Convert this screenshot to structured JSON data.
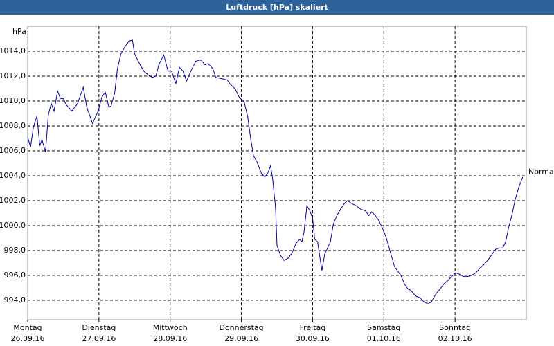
{
  "chart_data": {
    "type": "line",
    "title": "Luftdruck [hPa] skaliert",
    "y_label": "hPa",
    "annotation": {
      "text": "Normal",
      "y": 1004.3
    },
    "xlim": [
      0,
      7
    ],
    "ylim": [
      992.44,
      1016
    ],
    "grid": true,
    "xticks": [
      {
        "value": 0,
        "label": "Montag"
      },
      {
        "value": 1,
        "label": "Dienstag"
      },
      {
        "value": 2,
        "label": "Mittwoch"
      },
      {
        "value": 3,
        "label": "Donnerstag"
      },
      {
        "value": 4,
        "label": "Freitag"
      },
      {
        "value": 5,
        "label": "Samstag"
      },
      {
        "value": 6,
        "label": "Sonntag"
      }
    ],
    "xtick_dates": [
      "26.09.16",
      "27.09.16",
      "28.09.16",
      "29.09.16",
      "30.09.16",
      "01.10.16",
      "02.10.16"
    ],
    "yticks": [
      {
        "value": 994,
        "label": "994,0"
      },
      {
        "value": 996,
        "label": "996,0"
      },
      {
        "value": 998,
        "label": "998,0"
      },
      {
        "value": 1000,
        "label": "1000,0"
      },
      {
        "value": 1002,
        "label": "1002,0"
      },
      {
        "value": 1004,
        "label": "1004,0"
      },
      {
        "value": 1006,
        "label": "1006,0"
      },
      {
        "value": 1008,
        "label": "1008,0"
      },
      {
        "value": 1010,
        "label": "1010,0"
      },
      {
        "value": 1012,
        "label": "1012,0"
      },
      {
        "value": 1014,
        "label": "1014,0"
      }
    ],
    "x": [
      0,
      0.04,
      0.08,
      0.13,
      0.17,
      0.2,
      0.25,
      0.29,
      0.33,
      0.37,
      0.42,
      0.46,
      0.5,
      0.54,
      0.62,
      0.7,
      0.78,
      0.83,
      0.91,
      0.99,
      1.04,
      1.09,
      1.14,
      1.17,
      1.22,
      1.26,
      1.31,
      1.36,
      1.42,
      1.47,
      1.5,
      1.57,
      1.63,
      1.69,
      1.75,
      1.8,
      1.84,
      1.91,
      1.97,
      2.02,
      2.08,
      2.13,
      2.18,
      2.23,
      2.29,
      2.36,
      2.43,
      2.49,
      2.53,
      2.6,
      2.64,
      2.72,
      2.8,
      2.85,
      2.91,
      2.97,
      3.04,
      3.09,
      3.13,
      3.17,
      3.22,
      3.28,
      3.33,
      3.37,
      3.41,
      3.44,
      3.48,
      3.5,
      3.55,
      3.6,
      3.66,
      3.71,
      3.77,
      3.82,
      3.85,
      3.88,
      3.92,
      3.96,
      4.0,
      4.03,
      4.07,
      4.13,
      4.17,
      4.21,
      4.25,
      4.29,
      4.34,
      4.39,
      4.45,
      4.49,
      4.54,
      4.61,
      4.68,
      4.74,
      4.79,
      4.83,
      4.88,
      4.93,
      4.98,
      5.03,
      5.08,
      5.15,
      5.2,
      5.24,
      5.29,
      5.34,
      5.38,
      5.42,
      5.46,
      5.51,
      5.56,
      5.62,
      5.67,
      5.73,
      5.79,
      5.84,
      5.9,
      5.95,
      6.01,
      6.06,
      6.12,
      6.17,
      6.23,
      6.29,
      6.35,
      6.41,
      6.47,
      6.52,
      6.57,
      6.62,
      6.67,
      6.71,
      6.75,
      6.8,
      6.84,
      6.89,
      6.95
    ],
    "series": [
      {
        "name": "Luftdruck",
        "color": "#0000a0",
        "values": [
          1007.1,
          1006.3,
          1007.9,
          1008.8,
          1006.4,
          1006.9,
          1005.9,
          1008.9,
          1009.8,
          1009.2,
          1010.8,
          1010.2,
          1010.2,
          1009.7,
          1009.2,
          1009.8,
          1011.1,
          1009.5,
          1008.2,
          1009.2,
          1010.3,
          1010.7,
          1009.5,
          1009.6,
          1010.6,
          1012.6,
          1013.8,
          1014.3,
          1014.8,
          1014.9,
          1013.8,
          1013.0,
          1012.4,
          1012.1,
          1011.9,
          1012.0,
          1012.9,
          1013.7,
          1012.4,
          1012.4,
          1011.4,
          1012.7,
          1012.4,
          1011.6,
          1012.4,
          1013.2,
          1013.3,
          1012.9,
          1013.0,
          1012.6,
          1011.9,
          1011.8,
          1011.7,
          1011.3,
          1011.0,
          1010.3,
          1009.9,
          1008.7,
          1007.0,
          1005.6,
          1005.1,
          1004.2,
          1003.9,
          1004.2,
          1004.8,
          1003.7,
          1001.4,
          998.4,
          997.6,
          997.2,
          997.4,
          997.8,
          998.6,
          998.9,
          998.7,
          999.5,
          1001.6,
          1001.2,
          1000.6,
          998.9,
          998.7,
          996.4,
          997.7,
          998.2,
          998.7,
          1000.1,
          1000.8,
          1001.3,
          1001.8,
          1002.0,
          1001.8,
          1001.6,
          1001.3,
          1001.2,
          1000.8,
          1001.1,
          1000.8,
          1000.4,
          999.8,
          999.1,
          998.1,
          996.7,
          996.3,
          996.0,
          995.3,
          994.9,
          994.8,
          994.5,
          994.3,
          994.2,
          993.9,
          993.7,
          993.9,
          994.5,
          994.9,
          995.3,
          995.6,
          995.9,
          996.2,
          996.1,
          995.9,
          995.9,
          996.0,
          996.2,
          996.6,
          996.9,
          997.3,
          997.7,
          998.1,
          998.2,
          998.2,
          998.7,
          999.8,
          1000.9,
          1002.0,
          1003.0,
          1003.9
        ]
      }
    ]
  }
}
